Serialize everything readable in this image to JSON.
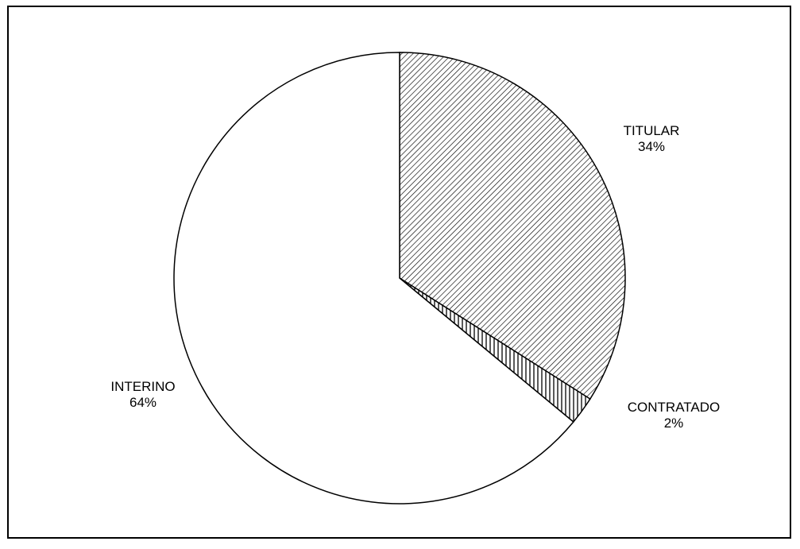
{
  "chart_data": {
    "type": "pie",
    "title": "",
    "slices": [
      {
        "label": "TITULAR",
        "value": 34,
        "value_label": "34%",
        "pattern": "diagonal-hatch"
      },
      {
        "label": "CONTRATADO",
        "value": 2,
        "value_label": "2%",
        "pattern": "vertical-hatch"
      },
      {
        "label": "INTERINO",
        "value": 64,
        "value_label": "64%",
        "pattern": "solid-white"
      }
    ],
    "start": "12 o'clock",
    "direction": "clockwise",
    "legend": "none",
    "labels": "outside, category and percentage",
    "colors": {
      "border": "#000000",
      "background": "#ffffff",
      "fill": "#ffffff"
    }
  }
}
